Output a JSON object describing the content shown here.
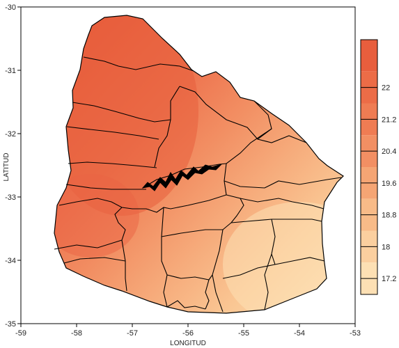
{
  "chart_data": {
    "type": "heatmap",
    "title": "",
    "xlabel": "LONGITUD",
    "ylabel": "LATITUD",
    "xlim": [
      -59,
      -53
    ],
    "ylim": [
      -35,
      -30
    ],
    "x_ticks": [
      "-59",
      "-58",
      "-57",
      "-56",
      "-55",
      "-54",
      "-53"
    ],
    "y_ticks": [
      "-30",
      "-31",
      "-32",
      "-33",
      "-34",
      "-35"
    ],
    "colorbar": {
      "levels": [
        "22",
        "21.2",
        "20.4",
        "19.6",
        "18.8",
        "18",
        "17.2"
      ],
      "range": [
        16.8,
        23.2
      ],
      "colors": [
        "#e85e3d",
        "#ec6c47",
        "#ef7c53",
        "#f28f63",
        "#f5a574",
        "#f8bb88",
        "#fbcf9f",
        "#fde0b4"
      ]
    }
  }
}
